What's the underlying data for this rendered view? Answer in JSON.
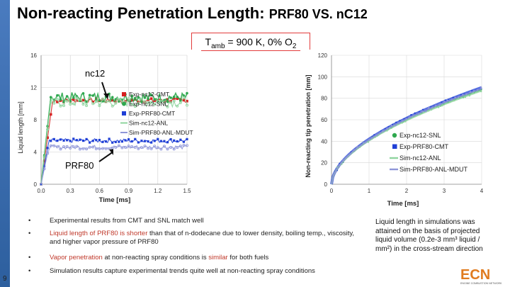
{
  "header": {
    "title_main": "Non-reacting Penetration Length: ",
    "title_sub": "PRF80 VS. nC12"
  },
  "condition": {
    "prefix": "T",
    "subscript": "amb",
    "mid": " = 900 K, 0% O",
    "o2_subscript": "2"
  },
  "colors": {
    "accent": "#e23b3b",
    "green": "#2fa84f",
    "blue": "#1f3fd6",
    "olive": "#8a9a2a",
    "sidebar": "#3b6db0"
  },
  "chart_data": [
    {
      "type": "line",
      "title": "",
      "xlabel": "Time [ms]",
      "ylabel": "Liquid length [mm]",
      "xlim": [
        0.0,
        1.5
      ],
      "ylim": [
        0,
        16
      ],
      "xticks": [
        "0.0",
        "0.3",
        "0.6",
        "0.9",
        "1.2",
        "1.5"
      ],
      "yticks": [
        "0",
        "4",
        "8",
        "12",
        "16"
      ],
      "annotations": [
        "nc12",
        "PRF80"
      ],
      "series": [
        {
          "name": "Exp-nc12-CMT",
          "color": "#d62020",
          "steady": 10.4
        },
        {
          "name": "Exp-nc12-SNL",
          "color": "#2fa84f",
          "steady": 10.8
        },
        {
          "name": "Exp-PRF80-CMT",
          "color": "#1f3fd6",
          "steady": 5.4
        },
        {
          "name": "Sim-nc12-ANL",
          "color": "#8fd49e",
          "steady": 10.2
        },
        {
          "name": "Sim-PRF80-ANL-MDUT",
          "color": "#8f96d8",
          "steady": 4.6
        }
      ]
    },
    {
      "type": "line",
      "title": "",
      "xlabel": "Time [ms]",
      "ylabel": "Non-reacting tip penetration [mm]",
      "xlim": [
        0,
        4
      ],
      "ylim": [
        0,
        120
      ],
      "xticks": [
        "0",
        "1",
        "2",
        "3",
        "4"
      ],
      "yticks": [
        "0",
        "20",
        "40",
        "60",
        "80",
        "100",
        "120"
      ],
      "series": [
        {
          "name": "Exp-nc12-SNL",
          "color": "#2fa84f",
          "end": 88
        },
        {
          "name": "Exp-PRF80-CMT",
          "color": "#1f3fd6",
          "end": 90
        },
        {
          "name": "Sim-nc12-ANL",
          "color": "#8fd49e",
          "end": 87
        },
        {
          "name": "Sim-PRF80-ANL-MDUT",
          "color": "#8f96d8",
          "end": 89
        }
      ]
    }
  ],
  "bullets": [
    {
      "parts": [
        {
          "t": "Experimental results from CMT and SNL match well",
          "c": ""
        }
      ]
    },
    {
      "parts": [
        {
          "t": "Liquid length of PRF80 is shorter",
          "c": "hl"
        },
        {
          "t": " than that of n-dodecane due to lower density, boiling temp., viscosity, and higher vapor pressure of PRF80",
          "c": ""
        }
      ]
    },
    {
      "parts": [
        {
          "t": "Vapor penetration",
          "c": "hl"
        },
        {
          "t": " at non-reacting spray conditions is ",
          "c": ""
        },
        {
          "t": "similar",
          "c": "hl"
        },
        {
          "t": " for both fuels",
          "c": ""
        }
      ]
    },
    {
      "parts": [
        {
          "t": "Simulation results capture experimental trends quite well at non-reacting spray conditions",
          "c": ""
        }
      ]
    }
  ],
  "bullet_symbol": "•",
  "note": "Liquid length in simulations was attained on the basis of projected liquid volume (0.2e-3 mm³ liquid / mm²) in the cross-stream direction",
  "page_number": "9",
  "logo_text": "ECN",
  "logo_caption": "ENGINE COMBUSTION NETWORK"
}
